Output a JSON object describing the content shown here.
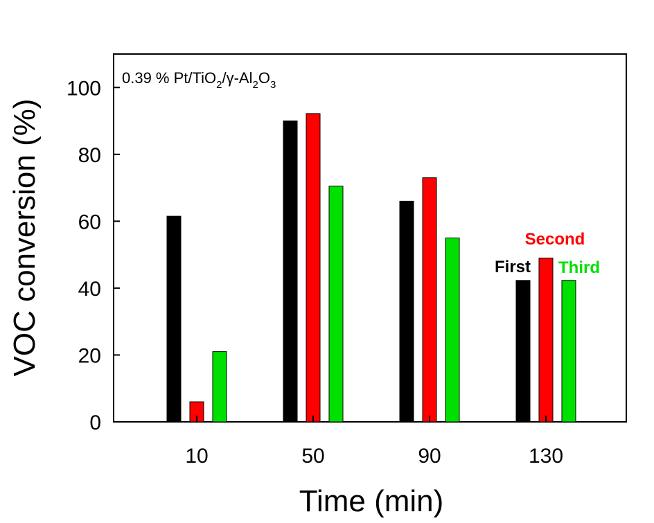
{
  "chart_data": {
    "type": "bar",
    "xlabel": "Time (min)",
    "ylabel": "VOC conversion (%)",
    "categories": [
      "10",
      "50",
      "90",
      "130"
    ],
    "ylim": [
      0,
      110
    ],
    "yticks": [
      0,
      20,
      40,
      60,
      80,
      100
    ],
    "grid": false,
    "annotation": {
      "text": "0.39 % Pt/TiO2/γ-Al2O3",
      "parts": {
        "p1": "0.39 % Pt/TiO",
        "s1": "2",
        "p2": "/γ-Al",
        "s2": "2",
        "p3": "O",
        "s3": "3"
      }
    },
    "series": [
      {
        "name": "First",
        "color": "#000000",
        "values": [
          61.5,
          90,
          66,
          42.3
        ]
      },
      {
        "name": "Second",
        "color": "#ff0000",
        "values": [
          6,
          92.2,
          73,
          49
        ]
      },
      {
        "name": "Third",
        "color": "#00e000",
        "values": [
          21,
          70.5,
          55,
          42.3
        ]
      }
    ]
  }
}
